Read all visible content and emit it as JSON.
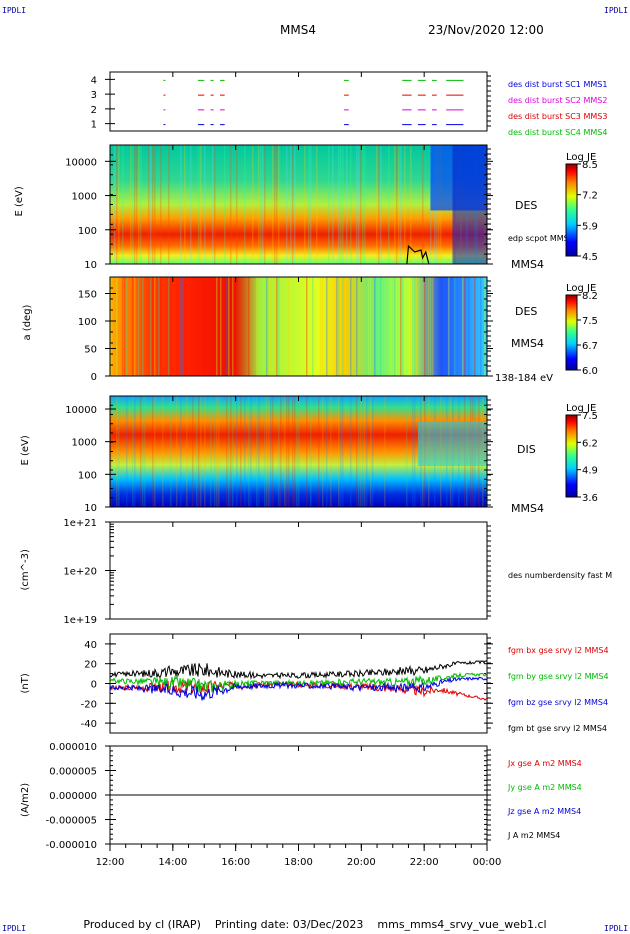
{
  "corner_label": "IPDLI",
  "header": {
    "spacecraft": "MMS4",
    "datetime": "23/Nov/2020 12:00"
  },
  "footer": {
    "produced_by": "Produced by cl (IRAP)",
    "printing_date": "Printing date: 03/Dec/2023",
    "script_name": "mms_mms4_srvy_vue_web1.cl"
  },
  "time_axis": {
    "start_hour": 12,
    "end_hour": 24,
    "tick_labels": [
      "12:00",
      "14:00",
      "16:00",
      "18:00",
      "20:00",
      "22:00",
      "00:00"
    ]
  },
  "colors": {
    "red": "#dd0000",
    "green": "#00bb00",
    "blue": "#0000dd",
    "magenta": "#dd00dd",
    "black": "#000000"
  },
  "chart_data": [
    {
      "type": "table",
      "panel": "burst_intervals",
      "ylim": [
        0.5,
        4.5
      ],
      "tick_labels": [
        "1",
        "2",
        "3",
        "4"
      ],
      "legend": [
        {
          "label": "des dist burst SC1 MMS1",
          "color": "#0000dd"
        },
        {
          "label": "des dist burst SC2 MMS2",
          "color": "#dd00dd"
        },
        {
          "label": "des dist burst SC3 MMS3",
          "color": "#dd0000"
        },
        {
          "label": "des dist burst SC4 MMS4",
          "color": "#00bb00"
        }
      ],
      "intervals_hours": [
        [
          13.7,
          13.75
        ],
        [
          14.8,
          15.0
        ],
        [
          15.2,
          15.3
        ],
        [
          15.5,
          15.65
        ],
        [
          19.45,
          19.6
        ],
        [
          21.3,
          21.6
        ],
        [
          21.8,
          22.05
        ],
        [
          22.25,
          22.4
        ],
        [
          22.7,
          23.25
        ]
      ]
    },
    {
      "type": "heatmap",
      "panel": "des_energy",
      "ylabel": "E (eV)",
      "yscale": "log",
      "ylim": [
        10,
        30000
      ],
      "tick_labels": [
        "10",
        "100",
        "1000",
        "10000"
      ],
      "label": "DES",
      "overlay_label": "edp scpot MMS4",
      "side_label": "MMS4",
      "colorbar": {
        "title": "Log JE",
        "labels": [
          "8.5",
          "7.2",
          "5.9",
          "4.5"
        ]
      }
    },
    {
      "type": "heatmap",
      "panel": "des_pitch",
      "ylabel": "a (deg)",
      "ylim": [
        0,
        180
      ],
      "tick_labels": [
        "0",
        "50",
        "100",
        "150"
      ],
      "label": "DES",
      "side_label": "MMS4",
      "energy_band": "138-184 eV",
      "colorbar": {
        "title": "Log JE",
        "labels": [
          "8.2",
          "7.5",
          "6.7",
          "6.0"
        ]
      }
    },
    {
      "type": "heatmap",
      "panel": "dis_energy",
      "ylabel": "E (eV)",
      "yscale": "log",
      "ylim": [
        10,
        25000
      ],
      "tick_labels": [
        "10",
        "100",
        "1000",
        "10000"
      ],
      "label": "DIS",
      "side_label": "MMS4",
      "colorbar": {
        "title": "Log JE",
        "labels": [
          "7.5",
          "6.2",
          "4.9",
          "3.6"
        ]
      }
    },
    {
      "type": "line",
      "panel": "density",
      "ylabel": "(cm^-3)",
      "yscale": "log",
      "ylim": [
        1e+19,
        1e+21
      ],
      "tick_labels": [
        "1e+19",
        "1e+20",
        "1e+21"
      ],
      "series": [
        {
          "name": "des numberdensity fast M",
          "values": []
        }
      ]
    },
    {
      "type": "line",
      "panel": "magnetic_field",
      "ylabel": "(nT)",
      "ylim": [
        -50,
        50
      ],
      "tick_labels": [
        "-40",
        "-20",
        "0",
        "20",
        "40"
      ],
      "x_hours": [
        12,
        13,
        14,
        15,
        16,
        17,
        18,
        19,
        20,
        21,
        22,
        22.5,
        23,
        23.5,
        24
      ],
      "series": [
        {
          "name": "fgm bx gse srvy l2 MMS4",
          "color": "#dd0000",
          "values": [
            -5,
            -4,
            -3,
            -4,
            -2,
            -1,
            -1,
            -2,
            -3,
            -5,
            -8,
            -6,
            -10,
            -13,
            -16
          ]
        },
        {
          "name": "fgm by gse srvy l2 MMS4",
          "color": "#00bb00",
          "values": [
            3,
            2,
            1,
            -3,
            -1,
            1,
            0,
            1,
            2,
            1,
            3,
            5,
            8,
            9,
            9
          ]
        },
        {
          "name": "fgm bz gse srvy l2 MMS4",
          "color": "#0000dd",
          "values": [
            -4,
            -5,
            -7,
            -10,
            -3,
            -2,
            -2,
            -3,
            -4,
            -4,
            -4,
            1,
            4,
            5,
            5
          ]
        },
        {
          "name": "fgm bt gse srvy l2 MMS4",
          "color": "#000000",
          "values": [
            9,
            10,
            12,
            14,
            9,
            8,
            8,
            9,
            10,
            12,
            13,
            17,
            20,
            21,
            22
          ]
        }
      ]
    },
    {
      "type": "line",
      "panel": "current_density",
      "ylabel": "(A/m2)",
      "ylim": [
        -1e-05,
        1e-05
      ],
      "tick_labels": [
        "-0.000010",
        "-0.000005",
        "0.000000",
        "0.000005",
        "0.000010"
      ],
      "series": [
        {
          "name": "Jx gse A m2 MMS4",
          "color": "#dd0000",
          "values": [
            0,
            0
          ]
        },
        {
          "name": "Jy gse A m2 MMS4",
          "color": "#00bb00",
          "values": [
            0,
            0
          ]
        },
        {
          "name": "Jz gse A m2 MMS4",
          "color": "#0000dd",
          "values": [
            0,
            0
          ]
        },
        {
          "name": "J A m2 MMS4",
          "color": "#000000",
          "values": [
            0,
            0
          ]
        }
      ]
    }
  ]
}
